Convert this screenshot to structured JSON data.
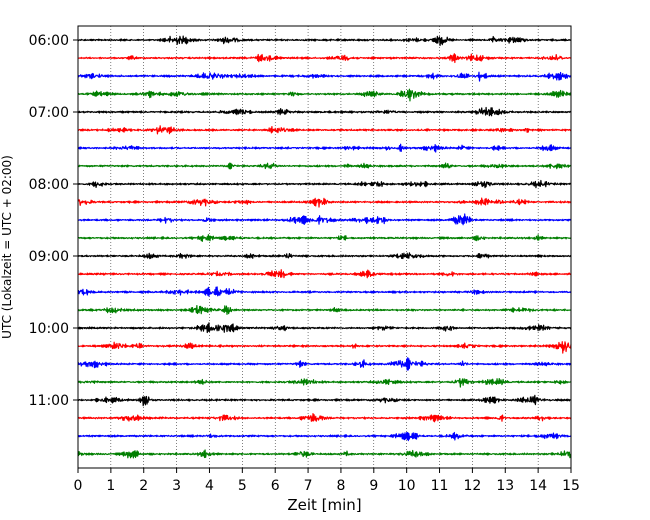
{
  "chart_data": {
    "type": "line",
    "title": "",
    "xlabel": "Zeit  [min]",
    "ylabel": "UTC (Lokalzeit = UTC + 02:00)",
    "xlim": [
      0,
      15
    ],
    "x_ticks": [
      0,
      1,
      2,
      3,
      4,
      5,
      6,
      7,
      8,
      9,
      10,
      11,
      12,
      13,
      14,
      15
    ],
    "grid": "vertical dotted",
    "y_tick_labels": [
      "06:00",
      "07:00",
      "08:00",
      "09:00",
      "10:00",
      "11:00"
    ],
    "y_tick_trace_index": [
      0,
      4,
      8,
      12,
      16,
      20
    ],
    "trace_colors": [
      "#000000",
      "#ff0000",
      "#0000ff",
      "#007f00"
    ],
    "traces": [
      {
        "start": "06:00",
        "color": "#000000"
      },
      {
        "start": "06:15",
        "color": "#ff0000"
      },
      {
        "start": "06:30",
        "color": "#0000ff"
      },
      {
        "start": "06:45",
        "color": "#007f00"
      },
      {
        "start": "07:00",
        "color": "#000000"
      },
      {
        "start": "07:15",
        "color": "#ff0000"
      },
      {
        "start": "07:30",
        "color": "#0000ff"
      },
      {
        "start": "07:45",
        "color": "#007f00"
      },
      {
        "start": "08:00",
        "color": "#000000"
      },
      {
        "start": "08:15",
        "color": "#ff0000"
      },
      {
        "start": "08:30",
        "color": "#0000ff"
      },
      {
        "start": "08:45",
        "color": "#007f00"
      },
      {
        "start": "09:00",
        "color": "#000000"
      },
      {
        "start": "09:15",
        "color": "#ff0000"
      },
      {
        "start": "09:30",
        "color": "#0000ff"
      },
      {
        "start": "09:45",
        "color": "#007f00"
      },
      {
        "start": "10:00",
        "color": "#000000"
      },
      {
        "start": "10:15",
        "color": "#ff0000"
      },
      {
        "start": "10:30",
        "color": "#0000ff"
      },
      {
        "start": "10:45",
        "color": "#007f00"
      },
      {
        "start": "11:00",
        "color": "#000000"
      },
      {
        "start": "11:15",
        "color": "#ff0000"
      },
      {
        "start": "11:30",
        "color": "#0000ff"
      },
      {
        "start": "11:45",
        "color": "#007f00"
      }
    ]
  }
}
